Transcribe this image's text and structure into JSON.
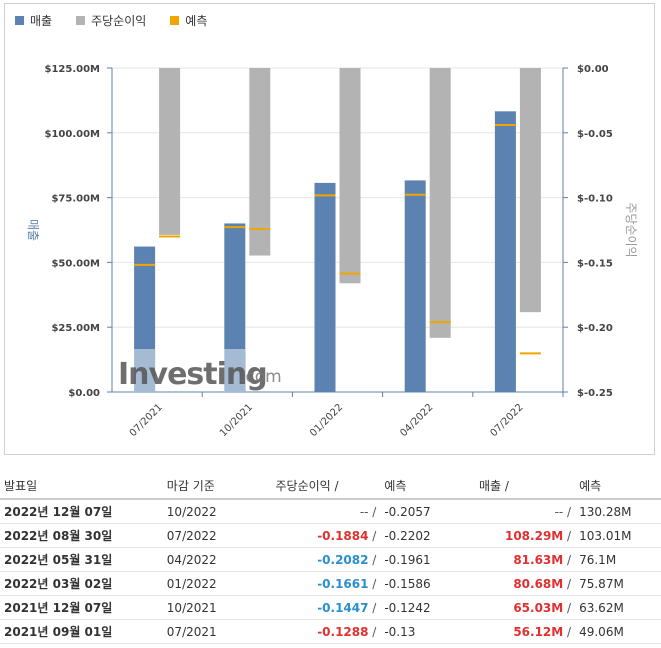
{
  "legend": [
    {
      "label": "매출",
      "color": "#5b82b0"
    },
    {
      "label": "주당순이익",
      "color": "#b3b3b3"
    },
    {
      "label": "예측",
      "color": "#f0a500"
    }
  ],
  "chart_data": {
    "type": "bar",
    "categories": [
      "07/2021",
      "10/2021",
      "01/2022",
      "04/2022",
      "07/2022"
    ],
    "series": [
      {
        "name": "매출",
        "axis": "left",
        "values": [
          56.12,
          65.03,
          80.68,
          81.63,
          108.29
        ],
        "forecast": [
          49.06,
          63.62,
          75.87,
          76.1,
          103.01
        ]
      },
      {
        "name": "주당순이익",
        "axis": "right",
        "values": [
          -0.1288,
          -0.1447,
          -0.1661,
          -0.2082,
          -0.1884
        ],
        "forecast": [
          -0.13,
          -0.1242,
          -0.1586,
          -0.1961,
          -0.2202
        ]
      }
    ],
    "ylabel": "매출",
    "y2label": "주당순이익",
    "ylim": [
      0,
      125
    ],
    "y2lim": [
      -0.25,
      0
    ],
    "yticks": [
      "$0.00",
      "$25.00M",
      "$50.00M",
      "$75.00M",
      "$100.00M",
      "$125.00M"
    ],
    "y2ticks": [
      "$-0.25",
      "$-0.20",
      "$-0.15",
      "$-0.10",
      "$-0.05",
      "$0.00"
    ],
    "watermark": {
      "brand": "Investing",
      "suffix": ".com"
    }
  },
  "table": {
    "headers": [
      "발표일",
      "마감 기준",
      "주당순이익 /",
      "예측",
      "매출 /",
      "예측"
    ],
    "rows": [
      {
        "date": "2022년 12월 07일",
        "period": "10/2022",
        "eps": "--",
        "eps_sep": " /",
        "eps_f": "-0.2057",
        "rev": "--",
        "rev_sep": " /",
        "rev_f": "130.28M",
        "eps_cls": "na",
        "rev_cls": "na"
      },
      {
        "date": "2022년 08월 30일",
        "period": "07/2022",
        "eps": "-0.1884",
        "eps_sep": " /",
        "eps_f": "-0.2202",
        "rev": "108.29M",
        "rev_sep": " /",
        "rev_f": "103.01M",
        "eps_cls": "neg",
        "rev_cls": "red"
      },
      {
        "date": "2022년 05월 31일",
        "period": "04/2022",
        "eps": "-0.2082",
        "eps_sep": " /",
        "eps_f": "-0.1961",
        "rev": "81.63M",
        "rev_sep": " /",
        "rev_f": "76.1M",
        "eps_cls": "pos",
        "rev_cls": "red"
      },
      {
        "date": "2022년 03월 02일",
        "period": "01/2022",
        "eps": "-0.1661",
        "eps_sep": " /",
        "eps_f": "-0.1586",
        "rev": "80.68M",
        "rev_sep": " /",
        "rev_f": "75.87M",
        "eps_cls": "pos",
        "rev_cls": "red"
      },
      {
        "date": "2021년 12월 07일",
        "period": "10/2021",
        "eps": "-0.1447",
        "eps_sep": " /",
        "eps_f": "-0.1242",
        "rev": "65.03M",
        "rev_sep": " /",
        "rev_f": "63.62M",
        "eps_cls": "pos",
        "rev_cls": "red"
      },
      {
        "date": "2021년 09월 01일",
        "period": "07/2021",
        "eps": "-0.1288",
        "eps_sep": " /",
        "eps_f": "-0.13",
        "rev": "56.12M",
        "rev_sep": " /",
        "rev_f": "49.06M",
        "eps_cls": "neg",
        "rev_cls": "red"
      }
    ]
  }
}
